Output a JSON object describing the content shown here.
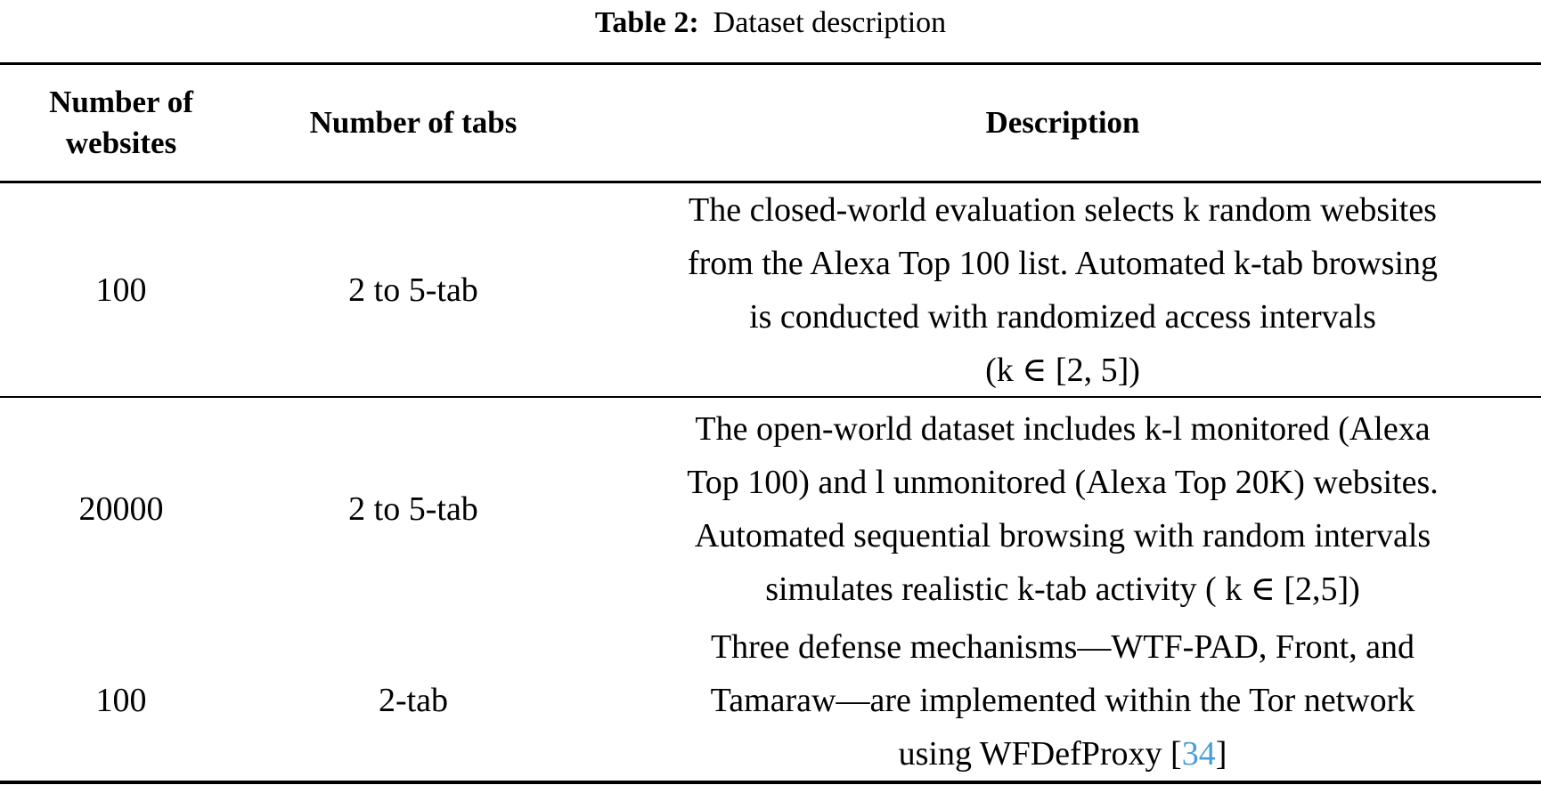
{
  "caption": {
    "label": "Table 2:",
    "title": "Dataset description"
  },
  "table": {
    "columns": [
      "Number of websites",
      "Number of tabs",
      "Description"
    ],
    "rows": [
      {
        "websites": "100",
        "tabs": "2 to 5-tab",
        "desc_lines": [
          "The closed-world evaluation selects k random websites",
          "from the Alexa Top 100 list. Automated k-tab browsing",
          "is conducted with randomized access intervals",
          "(k ∈ [2, 5])"
        ]
      },
      {
        "websites": "20000",
        "tabs": "2 to 5-tab",
        "desc_lines": [
          "The open-world dataset includes k-l monitored (Alexa",
          "Top 100) and l unmonitored (Alexa Top 20K) websites.",
          "Automated sequential browsing with random intervals",
          "simulates realistic k-tab activity ( k ∈ [2,5])"
        ]
      },
      {
        "websites": "100",
        "tabs": "2-tab",
        "desc_lines": [
          "Three defense mechanisms—WTF-PAD, Front, and",
          "Tamaraw—are implemented within the Tor network"
        ],
        "citation_line": {
          "prefix": "using WFDefProxy [",
          "cite": "34",
          "suffix": "]"
        }
      }
    ]
  },
  "colors": {
    "citation_blue": "#46a0d7",
    "rule_black": "#000000"
  }
}
